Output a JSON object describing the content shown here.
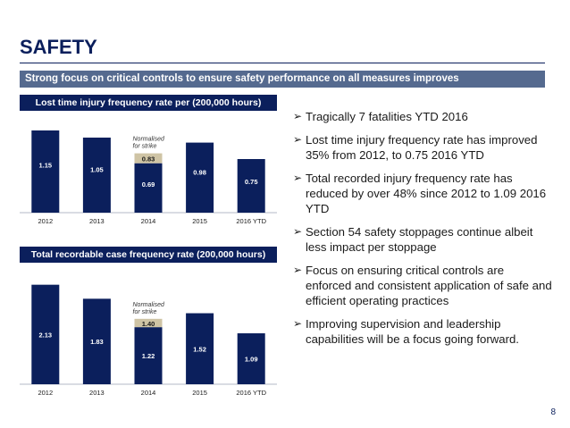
{
  "page": {
    "title": "SAFETY",
    "banner": "Strong focus on critical controls to ensure safety performance on all measures improves",
    "page_number": "8"
  },
  "bullets": [
    "Tragically 7 fatalities YTD 2016",
    "Lost time injury frequency rate has improved 35% from 2012, to 0.75 2016 YTD",
    "Total recorded injury frequency rate has reduced by over 48% since 2012 to 1.09 2016 YTD",
    "Section 54 safety stoppages continue albeit less impact per stoppage",
    "Focus on ensuring critical controls are enforced and consistent application of safe and efficient operating practices",
    "Improving supervision and leadership capabilities will be a focus going forward."
  ],
  "colors": {
    "bar": "#0b1f5c",
    "normalised": "#cfc4a5",
    "banner": "#556a8f"
  },
  "chart_data": [
    {
      "type": "bar",
      "title": "Lost time injury frequency rate per (200,000 hours)",
      "categories": [
        "2012",
        "2013",
        "2014",
        "2015",
        "2016 YTD"
      ],
      "values": [
        1.15,
        1.05,
        0.69,
        0.98,
        0.75
      ],
      "normalised": {
        "category": "2014",
        "value": 0.83,
        "label": "Normalised for strike"
      },
      "ylim": [
        0,
        1.2
      ]
    },
    {
      "type": "bar",
      "title": "Total recordable case frequency rate (200,000 hours)",
      "categories": [
        "2012",
        "2013",
        "2014",
        "2015",
        "2016 YTD"
      ],
      "values": [
        2.13,
        1.83,
        1.22,
        1.52,
        1.09
      ],
      "normalised": {
        "category": "2014",
        "value": 1.4,
        "label": "Normalised for strike"
      },
      "ylim": [
        0,
        2.2
      ]
    }
  ]
}
